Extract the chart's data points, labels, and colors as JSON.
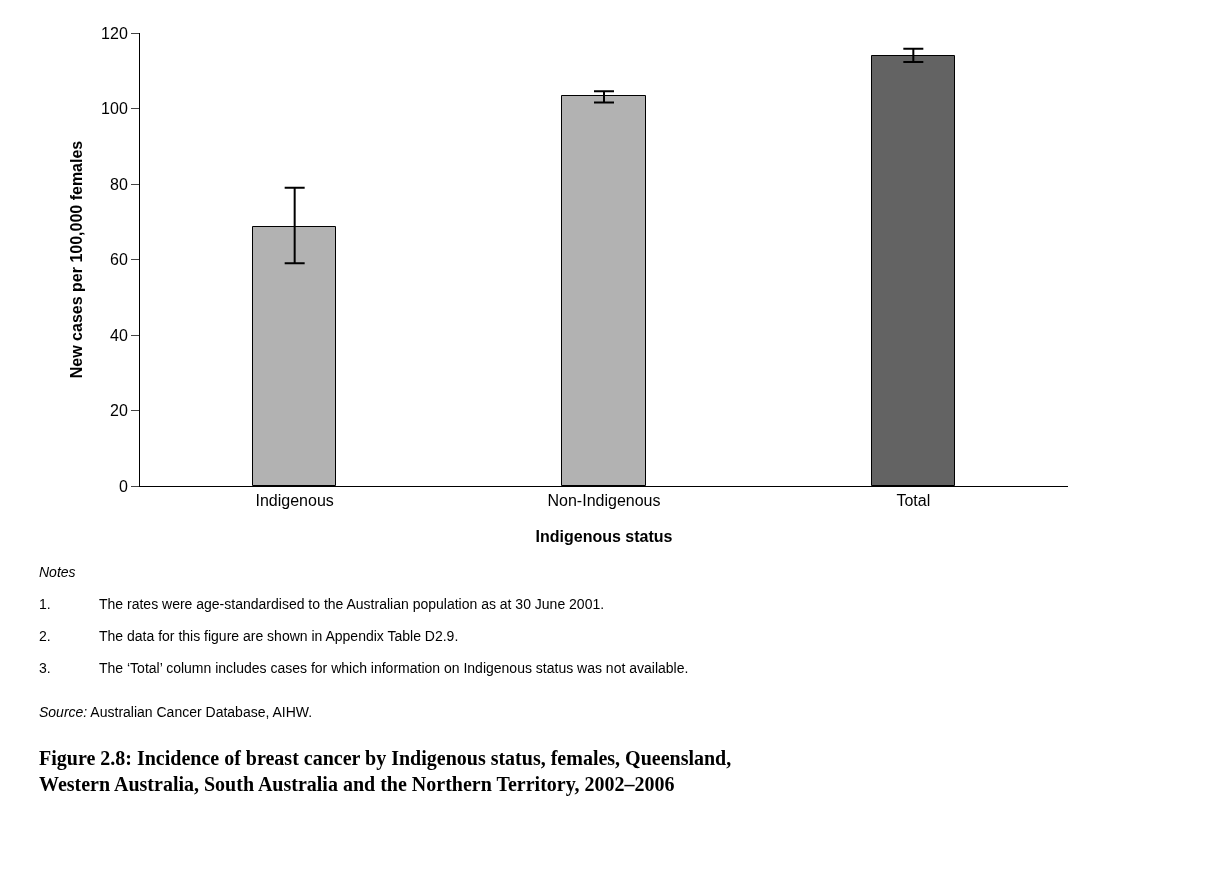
{
  "chart_data": {
    "type": "bar",
    "title": "Figure 2.8: Incidence of breast cancer by Indigenous status, females, Queensland, Western Australia, South Australia and the Northern Territory, 2002–2006",
    "xlabel": "Indigenous status",
    "ylabel": "New cases per 100,000 females",
    "categories": [
      "Indigenous",
      "Non-Indigenous",
      "Total"
    ],
    "values": [
      68.6,
      103.2,
      113.9
    ],
    "colors": [
      "#b2b2b2",
      "#b2b2b2",
      "#636363"
    ],
    "errors": [
      [
        59,
        79
      ],
      [
        101.6,
        104.6
      ],
      [
        112.3,
        115.8
      ]
    ],
    "ylim": [
      0,
      120
    ],
    "yticks": [
      0,
      20,
      40,
      60,
      80,
      100,
      120
    ],
    "annotations": [
      "Notes",
      "1. The rates were age-standardised to the Australian population as at 30 June 2001.",
      "2. The data for this figure are shown in Appendix Table D2.9.",
      "3. The ‘Total’ column includes cases for which information on Indigenous status was not available.",
      "Source: Australian Cancer Database, AIHW."
    ]
  }
}
